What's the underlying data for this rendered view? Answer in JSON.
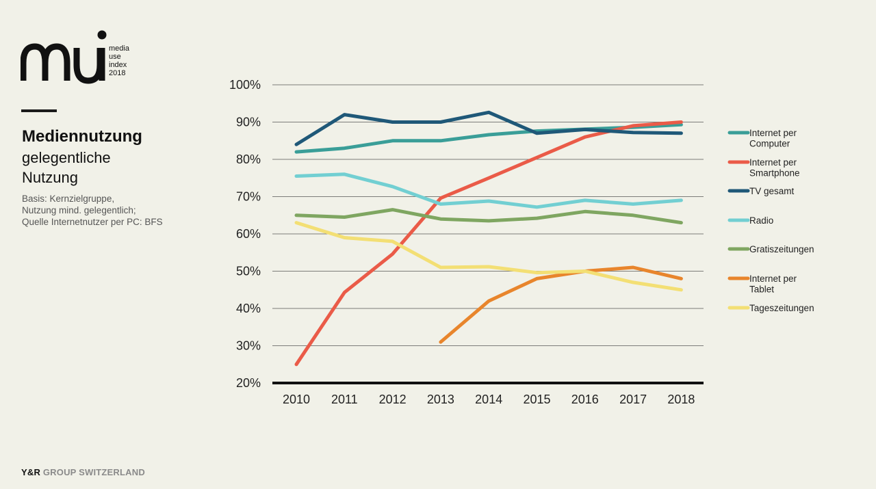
{
  "logo": {
    "wordmark": "mui",
    "line1": "media",
    "line2": "use",
    "line3": "index",
    "line4": "2018"
  },
  "heading": {
    "title": "Mediennutzung",
    "subtitle_line1": "gelegentliche",
    "subtitle_line2": "Nutzung"
  },
  "notes": {
    "line1": "Basis: Kernzielgruppe,",
    "line2": "Nutzung mind. gelegentlich;",
    "line3": "Quelle Internetnutzer per PC: BFS"
  },
  "footer": {
    "brand": "Y&R",
    "group": " GROUP SWITZERLAND"
  },
  "chart_data": {
    "type": "line",
    "title": "",
    "xlabel": "",
    "ylabel": "",
    "ylim": [
      20,
      100
    ],
    "y_ticks": [
      "20%",
      "30%",
      "40%",
      "50%",
      "60%",
      "70%",
      "80%",
      "90%",
      "100%"
    ],
    "y_tick_values": [
      20,
      30,
      40,
      50,
      60,
      70,
      80,
      90,
      100
    ],
    "x": [
      "2010",
      "2011",
      "2012",
      "2013",
      "2014",
      "2015",
      "2016",
      "2017",
      "2018"
    ],
    "grid": true,
    "legend_position": "right",
    "series": [
      {
        "name": "Internet per Computer",
        "legend_lines": [
          "Internet per",
          "Computer"
        ],
        "color": "#3a9e98",
        "values": [
          82,
          83,
          85,
          85,
          86.6,
          87.6,
          88.1,
          88.6,
          89.3
        ]
      },
      {
        "name": "Internet per Smartphone",
        "legend_lines": [
          "Internet per",
          "Smartphone"
        ],
        "color": "#ea5b48",
        "values": [
          25,
          44.3,
          54.6,
          69.6,
          75,
          80.5,
          86,
          89,
          90
        ]
      },
      {
        "name": "TV gesamt",
        "legend_lines": [
          "TV gesamt"
        ],
        "color": "#1f5878",
        "values": [
          84,
          92,
          90,
          90,
          92.6,
          87,
          88,
          87.2,
          87
        ]
      },
      {
        "name": "Radio",
        "legend_lines": [
          "Radio"
        ],
        "color": "#72cfd2",
        "values": [
          75.5,
          76,
          72.7,
          68,
          68.8,
          67.2,
          69,
          68,
          69
        ]
      },
      {
        "name": "Gratiszeitungen",
        "legend_lines": [
          "Gratiszeitungen"
        ],
        "color": "#7fa661",
        "values": [
          65,
          64.5,
          66.5,
          64,
          63.5,
          64.2,
          66,
          65,
          63
        ]
      },
      {
        "name": "Internet per Tablet",
        "legend_lines": [
          "Internet per",
          "Tablet"
        ],
        "color": "#e8852c",
        "values": [
          null,
          null,
          null,
          31,
          42,
          48,
          50,
          51,
          48
        ]
      },
      {
        "name": "Tageszeitungen",
        "legend_lines": [
          "Tageszeitungen"
        ],
        "color": "#f3df74",
        "values": [
          63,
          59,
          58,
          51,
          51.2,
          49.6,
          50,
          47,
          45
        ]
      }
    ]
  }
}
